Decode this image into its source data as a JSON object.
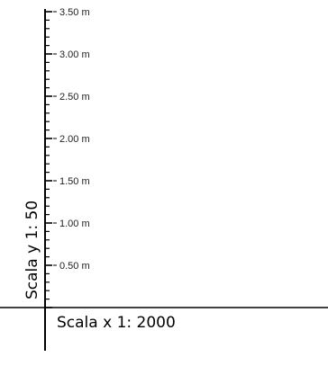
{
  "vertical_axis": {
    "min": 0,
    "max": 3.5,
    "minor_step": 0.1,
    "labeled_ticks": [
      {
        "value": 0.5,
        "label": "0.50 m"
      },
      {
        "value": 1.0,
        "label": "1.00 m"
      },
      {
        "value": 1.5,
        "label": "1.50 m"
      },
      {
        "value": 2.0,
        "label": "2.00 m"
      },
      {
        "value": 2.5,
        "label": "2.50 m"
      },
      {
        "value": 3.0,
        "label": "3.00 m"
      },
      {
        "value": 3.5,
        "label": "3.50 m"
      }
    ]
  },
  "scale_y_label": "Scala y 1:  50",
  "scale_x_label": "Scala x 1:  2000"
}
